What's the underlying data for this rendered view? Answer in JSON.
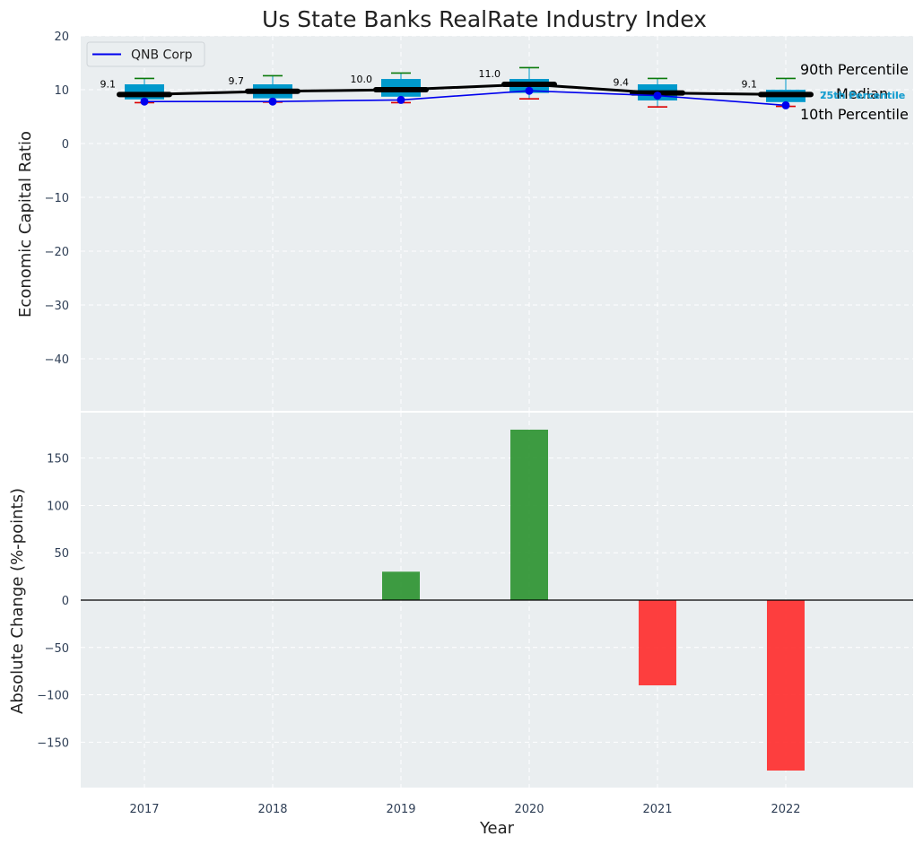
{
  "chart_data": [
    {
      "type": "box",
      "title": "Us State Banks RealRate Industry Index",
      "xlabel": "",
      "ylabel": "Economic Capital Ratio",
      "ylim": [
        -50,
        20
      ],
      "yticks": [
        20,
        10,
        0,
        -10,
        -20,
        -30,
        -40
      ],
      "categories": [
        "2017",
        "2018",
        "2019",
        "2020",
        "2021",
        "2022"
      ],
      "grid": true,
      "legend": {
        "position": "top-left",
        "entries": [
          "QNB Corp"
        ]
      },
      "percentiles": {
        "p10": [
          7.6,
          7.7,
          7.6,
          8.3,
          6.8,
          6.9
        ],
        "p25": [
          8.2,
          8.4,
          8.7,
          9.4,
          8.0,
          7.7
        ],
        "median": [
          9.1,
          9.7,
          10.0,
          11.0,
          9.4,
          9.1
        ],
        "p75": [
          11.0,
          11.0,
          12.0,
          12.0,
          11.0,
          10.0
        ],
        "p90": [
          12.1,
          12.6,
          13.1,
          14.1,
          12.1,
          12.1
        ]
      },
      "median_labels": [
        "9.1",
        "9.7",
        "10.0",
        "11.0",
        "9.4",
        "9.1"
      ],
      "series": [
        {
          "name": "QNB Corp",
          "color": "#0000ee",
          "values": [
            7.8,
            7.8,
            8.1,
            9.8,
            8.9,
            7.1
          ]
        }
      ],
      "annotations": [
        "90th Percentile",
        "Median",
        "10th Percentile",
        "75th Percentile",
        "25th Percentile"
      ]
    },
    {
      "type": "bar",
      "xlabel": "Year",
      "ylabel": "Absolute Change (%-points)",
      "ylim": [
        -197,
        197
      ],
      "yticks": [
        150,
        100,
        50,
        0,
        -50,
        -100,
        -150
      ],
      "categories": [
        "2017",
        "2018",
        "2019",
        "2020",
        "2021",
        "2022"
      ],
      "values": [
        0,
        0,
        30,
        180,
        -90,
        -180
      ],
      "positive_color": "#2e9432",
      "negative_color": "#ff2a2a",
      "grid": true
    }
  ],
  "colors": {
    "plot_bg": "#eaeef0",
    "box_fill": "#0099cc",
    "median_line": "#000000",
    "whisker_top": "#0a7a0a",
    "whisker_bottom": "#dd0000",
    "qnb_line": "#0000ee"
  }
}
